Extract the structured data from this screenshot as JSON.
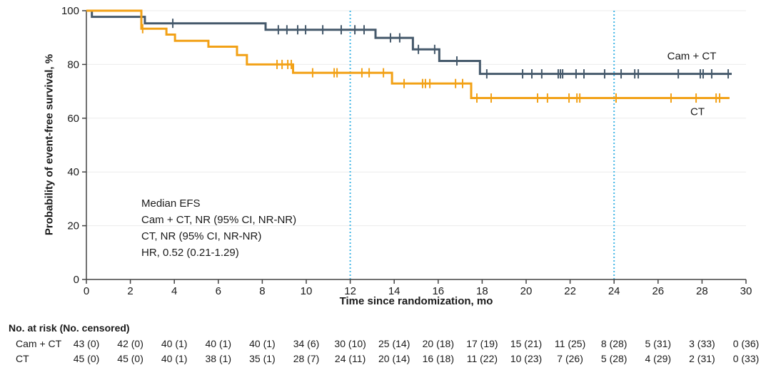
{
  "chart_data": {
    "type": "line",
    "subtype": "kaplan-meier-step",
    "title": "",
    "xlabel": "Time since randomization, mo",
    "ylabel": "Probability of event-free survival, %",
    "xlim": [
      0,
      30
    ],
    "ylim": [
      0,
      100
    ],
    "xticks": [
      0,
      2,
      4,
      6,
      8,
      10,
      12,
      14,
      16,
      18,
      20,
      22,
      24,
      26,
      28,
      30
    ],
    "yticks": [
      0,
      20,
      40,
      60,
      80,
      100
    ],
    "grid": "horizontal-light",
    "legend_position": "inline-right",
    "reference_lines_x": [
      12,
      24
    ],
    "annotation": [
      "Median EFS",
      "Cam + CT, NR (95% CI, NR-NR)",
      "CT, NR (95% CI, NR-NR)",
      "HR, 0.52 (0.21-1.29)"
    ],
    "series": [
      {
        "id": "cam-ct",
        "name": "Cam + CT",
        "color": "#45596B",
        "steps": [
          [
            0,
            100
          ],
          [
            0.25,
            97.7
          ],
          [
            2.66,
            95.3
          ],
          [
            8.15,
            92.9
          ],
          [
            13.15,
            89.9
          ],
          [
            14.85,
            85.6
          ],
          [
            16.05,
            81.3
          ],
          [
            17.9,
            76.5
          ],
          [
            29.35,
            76.5
          ]
        ],
        "censors": [
          [
            3.93,
            95.3
          ],
          [
            8.73,
            92.9
          ],
          [
            9.12,
            92.9
          ],
          [
            9.61,
            92.9
          ],
          [
            9.97,
            92.9
          ],
          [
            10.75,
            92.9
          ],
          [
            11.59,
            92.9
          ],
          [
            12.21,
            92.9
          ],
          [
            12.63,
            92.9
          ],
          [
            13.83,
            89.9
          ],
          [
            14.25,
            89.9
          ],
          [
            15.1,
            85.6
          ],
          [
            15.84,
            85.6
          ],
          [
            16.85,
            81.3
          ],
          [
            18.21,
            76.5
          ],
          [
            19.84,
            76.5
          ],
          [
            20.26,
            76.5
          ],
          [
            20.71,
            76.5
          ],
          [
            21.46,
            76.5
          ],
          [
            21.56,
            76.5
          ],
          [
            21.66,
            76.5
          ],
          [
            22.27,
            76.5
          ],
          [
            22.63,
            76.5
          ],
          [
            23.57,
            76.5
          ],
          [
            24.32,
            76.5
          ],
          [
            24.94,
            76.5
          ],
          [
            25.1,
            76.5
          ],
          [
            26.92,
            76.5
          ],
          [
            27.92,
            76.5
          ],
          [
            28.05,
            76.5
          ],
          [
            28.44,
            76.5
          ],
          [
            29.19,
            76.5
          ]
        ]
      },
      {
        "id": "ct",
        "name": "CT",
        "color": "#F2A116",
        "steps": [
          [
            0,
            100
          ],
          [
            2.5,
            93.3
          ],
          [
            3.64,
            91.1
          ],
          [
            4.03,
            88.8
          ],
          [
            5.55,
            86.6
          ],
          [
            6.85,
            83.5
          ],
          [
            7.3,
            80.0
          ],
          [
            9.4,
            76.9
          ],
          [
            13.9,
            72.9
          ],
          [
            17.5,
            67.5
          ],
          [
            29.25,
            67.5
          ]
        ],
        "censors": [
          [
            2.56,
            93.3
          ],
          [
            8.67,
            80
          ],
          [
            8.9,
            80
          ],
          [
            9.16,
            80
          ],
          [
            9.32,
            80
          ],
          [
            10.29,
            76.9
          ],
          [
            11.27,
            76.9
          ],
          [
            11.4,
            76.9
          ],
          [
            12.53,
            76.9
          ],
          [
            12.86,
            76.9
          ],
          [
            13.51,
            76.9
          ],
          [
            14.45,
            72.9
          ],
          [
            15.29,
            72.9
          ],
          [
            15.42,
            72.9
          ],
          [
            15.62,
            72.9
          ],
          [
            16.79,
            72.9
          ],
          [
            17.11,
            72.9
          ],
          [
            17.76,
            67.5
          ],
          [
            18.41,
            67.5
          ],
          [
            20.52,
            67.5
          ],
          [
            20.97,
            67.5
          ],
          [
            21.95,
            67.5
          ],
          [
            22.31,
            67.5
          ],
          [
            22.44,
            67.5
          ],
          [
            24.09,
            67.5
          ],
          [
            26.59,
            67.5
          ],
          [
            27.73,
            67.5
          ],
          [
            28.64,
            67.5
          ],
          [
            28.8,
            67.5
          ]
        ]
      }
    ]
  },
  "palette": {
    "axis": "#424242",
    "text": "#1a1a1a",
    "grid": "#ebebeb",
    "reference_line": "#41B6E6"
  },
  "risk_table": {
    "header": "No. at risk (No. censored)",
    "rows": [
      {
        "label": "Cam + CT",
        "values": [
          "43 (0)",
          "42 (0)",
          "40 (1)",
          "40 (1)",
          "40 (1)",
          "34 (6)",
          "30 (10)",
          "25 (14)",
          "20 (18)",
          "17 (19)",
          "15 (21)",
          "11 (25)",
          "8 (28)",
          "5 (31)",
          "3 (33)",
          "0 (36)"
        ]
      },
      {
        "label": "CT",
        "values": [
          "45 (0)",
          "45 (0)",
          "40 (1)",
          "38 (1)",
          "35 (1)",
          "28 (7)",
          "24 (11)",
          "20 (14)",
          "16 (18)",
          "11 (22)",
          "10 (23)",
          "7 (26)",
          "5 (28)",
          "4 (29)",
          "2 (31)",
          "0 (33)"
        ]
      }
    ]
  }
}
